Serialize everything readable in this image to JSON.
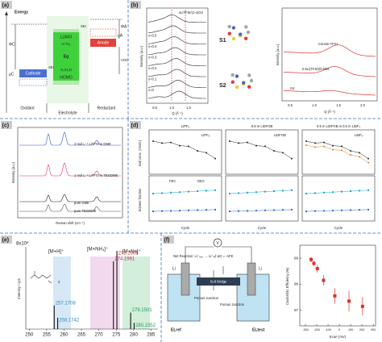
{
  "a": {
    "label": "(a)",
    "energy": "Energy",
    "phi_c": "ΦC",
    "phi_a": "ΦA",
    "mu_c": "μC",
    "mu_a": "μA",
    "cathode": "Cathode",
    "anode": "Anode",
    "lumo": "LUMO",
    "homo": "HOMO",
    "eg": "Eg",
    "sei_left": "SEI",
    "sei_right": "SEI",
    "voc": "VOC",
    "h_o2": "H⁺/H₂",
    "o2": "O₂/H₂O",
    "oxidant": "Oxidant",
    "electrolyte": "Electrolyte",
    "reductant": "Reductant"
  },
  "b": {
    "label": "(b)",
    "left_title": "xLiTFSI/(1-x)G4",
    "x_series": [
      "x=0",
      "x=0.1",
      "x=0.2",
      "x=0.3",
      "x=0.4",
      "x=0.5"
    ],
    "y_label": "Intensity (a.u.)",
    "x_label": "Q (Å⁻¹)",
    "xticks_left": [
      "0.5",
      "1.0",
      "1.5"
    ],
    "s1": "S1",
    "s2": "S2",
    "curve_labels": [
      "C4mim-TFSI",
      "0.5Li(TFSI)/0.5G4",
      "G4"
    ],
    "xticks_right": [
      "0.5",
      "1.0",
      "1.5",
      "2.0"
    ]
  },
  "c": {
    "label": "(c)",
    "series": [
      "2 mol L⁻¹ LiTFSI in DME",
      "1 mol L⁻¹ LiTFSI in TEGDME",
      "pure DME",
      "pure TEGDME"
    ],
    "x_label": "Raman shift (cm⁻¹)",
    "y_label": "Intensity (a.u.)"
  },
  "d": {
    "label": "(d)",
    "titles": [
      "LiPF₆",
      "0.9 m LiDFOB",
      "0.5 m LiDFOB in 0.5 m LiBF₄"
    ],
    "legend_top": [
      "LiPF₆",
      "LiDFOB",
      "LiBF₄"
    ],
    "legend_bottom": [
      "FEC",
      "DEC"
    ],
    "y_top": "Salt conc. (mol/L)",
    "y_bottom": "Solvent fraction",
    "x_label": "Cycle"
  },
  "e": {
    "label": "(e)",
    "scale": "8x10⁶",
    "groups": [
      "[M+H]⁺",
      "[M+NH₄]⁺",
      "[M+Na]⁺"
    ],
    "subscript": "3",
    "y_label": "Intensity / cps",
    "peaks": [
      257.1708,
      258.1742,
      274.1961,
      275.2001,
      279.1501,
      280.1552
    ],
    "heights": [
      2.3,
      1.1,
      6.6,
      7.6,
      1.6,
      0.6
    ],
    "xlim": [
      249,
      287
    ],
    "ylim": [
      0,
      8
    ],
    "xticks": [
      250,
      255,
      260,
      265,
      270,
      275,
      280,
      285
    ]
  },
  "f": {
    "label": "(f)",
    "v": "V",
    "net": "Net Reaction: Li⁺ₜₑₛₜ → Li⁺ᵣₑf   ΔG = -nFE",
    "li_left": "Li",
    "li_right": "Li",
    "salt_bridge": "Salt Bridge",
    "junction_left": "Porous Junction",
    "junction_right": "Porous Junction",
    "el_ref": "ELref",
    "el_test": "ELtest",
    "y_label": "Coulombic Efficiency (%)",
    "x_label": "Ecorr (mV)",
    "x": [
      -250,
      -225,
      -195,
      -140,
      -40,
      85,
      205
    ],
    "y": [
      98.95,
      98.8,
      98.6,
      98.15,
      97.55,
      97.35,
      97.15
    ],
    "errors": [
      0.1,
      0.1,
      0.15,
      0.2,
      0.3,
      0.4,
      0.35
    ],
    "xlim": [
      -350,
      320
    ],
    "ylim": [
      96.4,
      99.5
    ],
    "xticks": [
      -300,
      -200,
      -100,
      0,
      100,
      200,
      300
    ],
    "yticks": [
      97,
      98,
      99
    ],
    "color": "#d9342b"
  }
}
